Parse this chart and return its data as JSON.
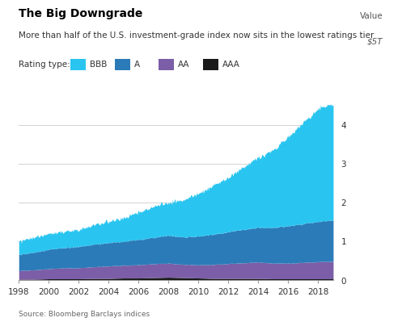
{
  "title": "The Big Downgrade",
  "subtitle": "More than half of the U.S. investment-grade index now sits in the lowest ratings tier",
  "source": "Source: Bloomberg Barclays indices",
  "legend_label": "Rating type:",
  "categories": [
    "BBB",
    "A",
    "AA",
    "AAA"
  ],
  "colors": [
    "#29C5F0",
    "#2B7BB9",
    "#7B5EA7",
    "#1a1a1a"
  ],
  "yticks": [
    0,
    1,
    2,
    3,
    4
  ],
  "ylim": [
    0,
    5.0
  ],
  "xticks": [
    1998,
    2000,
    2002,
    2004,
    2006,
    2008,
    2010,
    2012,
    2014,
    2016,
    2018
  ],
  "background_color": "#ffffff",
  "title_fontsize": 10,
  "subtitle_fontsize": 7.5,
  "tick_fontsize": 7.5,
  "legend_fontsize": 7.5,
  "value_label": "Value",
  "value_unit": "$5T"
}
